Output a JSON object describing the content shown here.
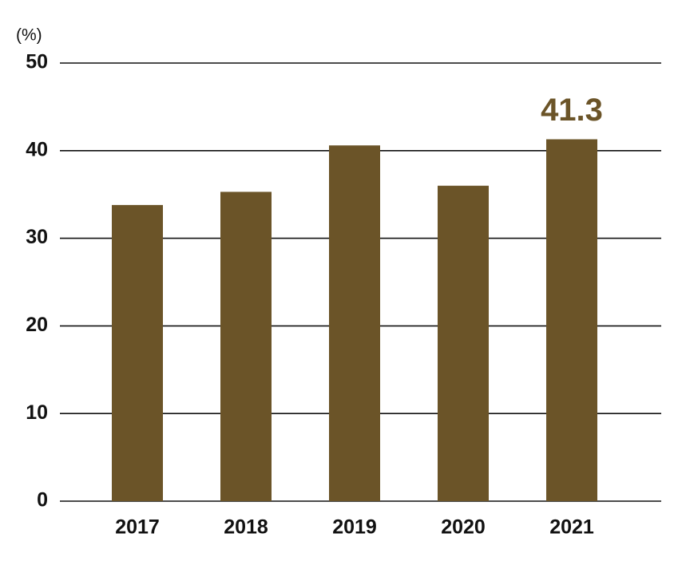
{
  "chart_data": {
    "type": "bar",
    "unit_label": "(%)",
    "categories": [
      "2017",
      "2018",
      "2019",
      "2020",
      "2021"
    ],
    "values": [
      33.8,
      35.3,
      40.6,
      36.0,
      41.3
    ],
    "value_labels": [
      null,
      null,
      null,
      null,
      "41.3"
    ],
    "color": "#6b5428",
    "ylim": [
      0,
      50
    ],
    "yticks": [
      0,
      10,
      20,
      30,
      40,
      50
    ],
    "grid": true
  }
}
